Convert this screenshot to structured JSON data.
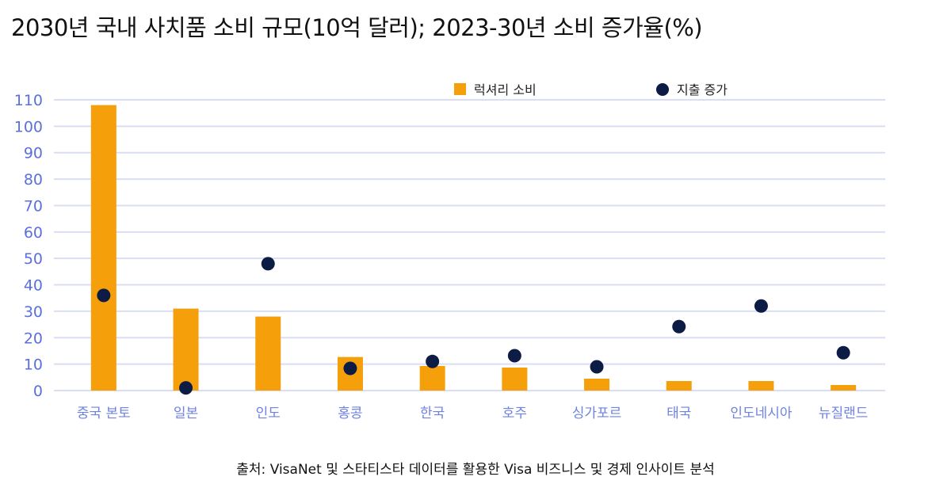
{
  "title": "2030년 국내 사치품 소비 규모(10억 달러); 2023-30년 소비 증가율(%)",
  "source": "출처: VisaNet 및 스타티스타 데이터를 활용한 Visa 비즈니스 및 경제 인사이트 분석",
  "colors": {
    "bar": "#F5A00A",
    "dot": "#0C1C45",
    "grid": "#D9DEF5",
    "axis_text": "#5A6FE0"
  },
  "chart_data": {
    "type": "bar",
    "title": "2030년 국내 사치품 소비 규모(10억 달러); 2023-30년 소비 증가율(%)",
    "categories": [
      "중국 본토",
      "일본",
      "인도",
      "홍콩",
      "한국",
      "호주",
      "싱가포르",
      "태국",
      "인도네시아",
      "뉴질랜드"
    ],
    "series": [
      {
        "name": "럭셔리 소비",
        "type": "bar",
        "values": [
          108,
          31,
          28,
          12.7,
          9.3,
          8.7,
          4.5,
          3.6,
          3.6,
          2.1
        ]
      },
      {
        "name": "지출 증가",
        "type": "scatter",
        "values": [
          36,
          1,
          48,
          8.4,
          11,
          13.2,
          9,
          24.2,
          32,
          14.3
        ]
      }
    ],
    "ylim": [
      0,
      110
    ],
    "yticks": [
      0,
      10,
      20,
      30,
      40,
      50,
      60,
      70,
      80,
      90,
      100,
      110
    ],
    "grid": true,
    "legend": "top-center",
    "xlabel": "",
    "ylabel": ""
  }
}
